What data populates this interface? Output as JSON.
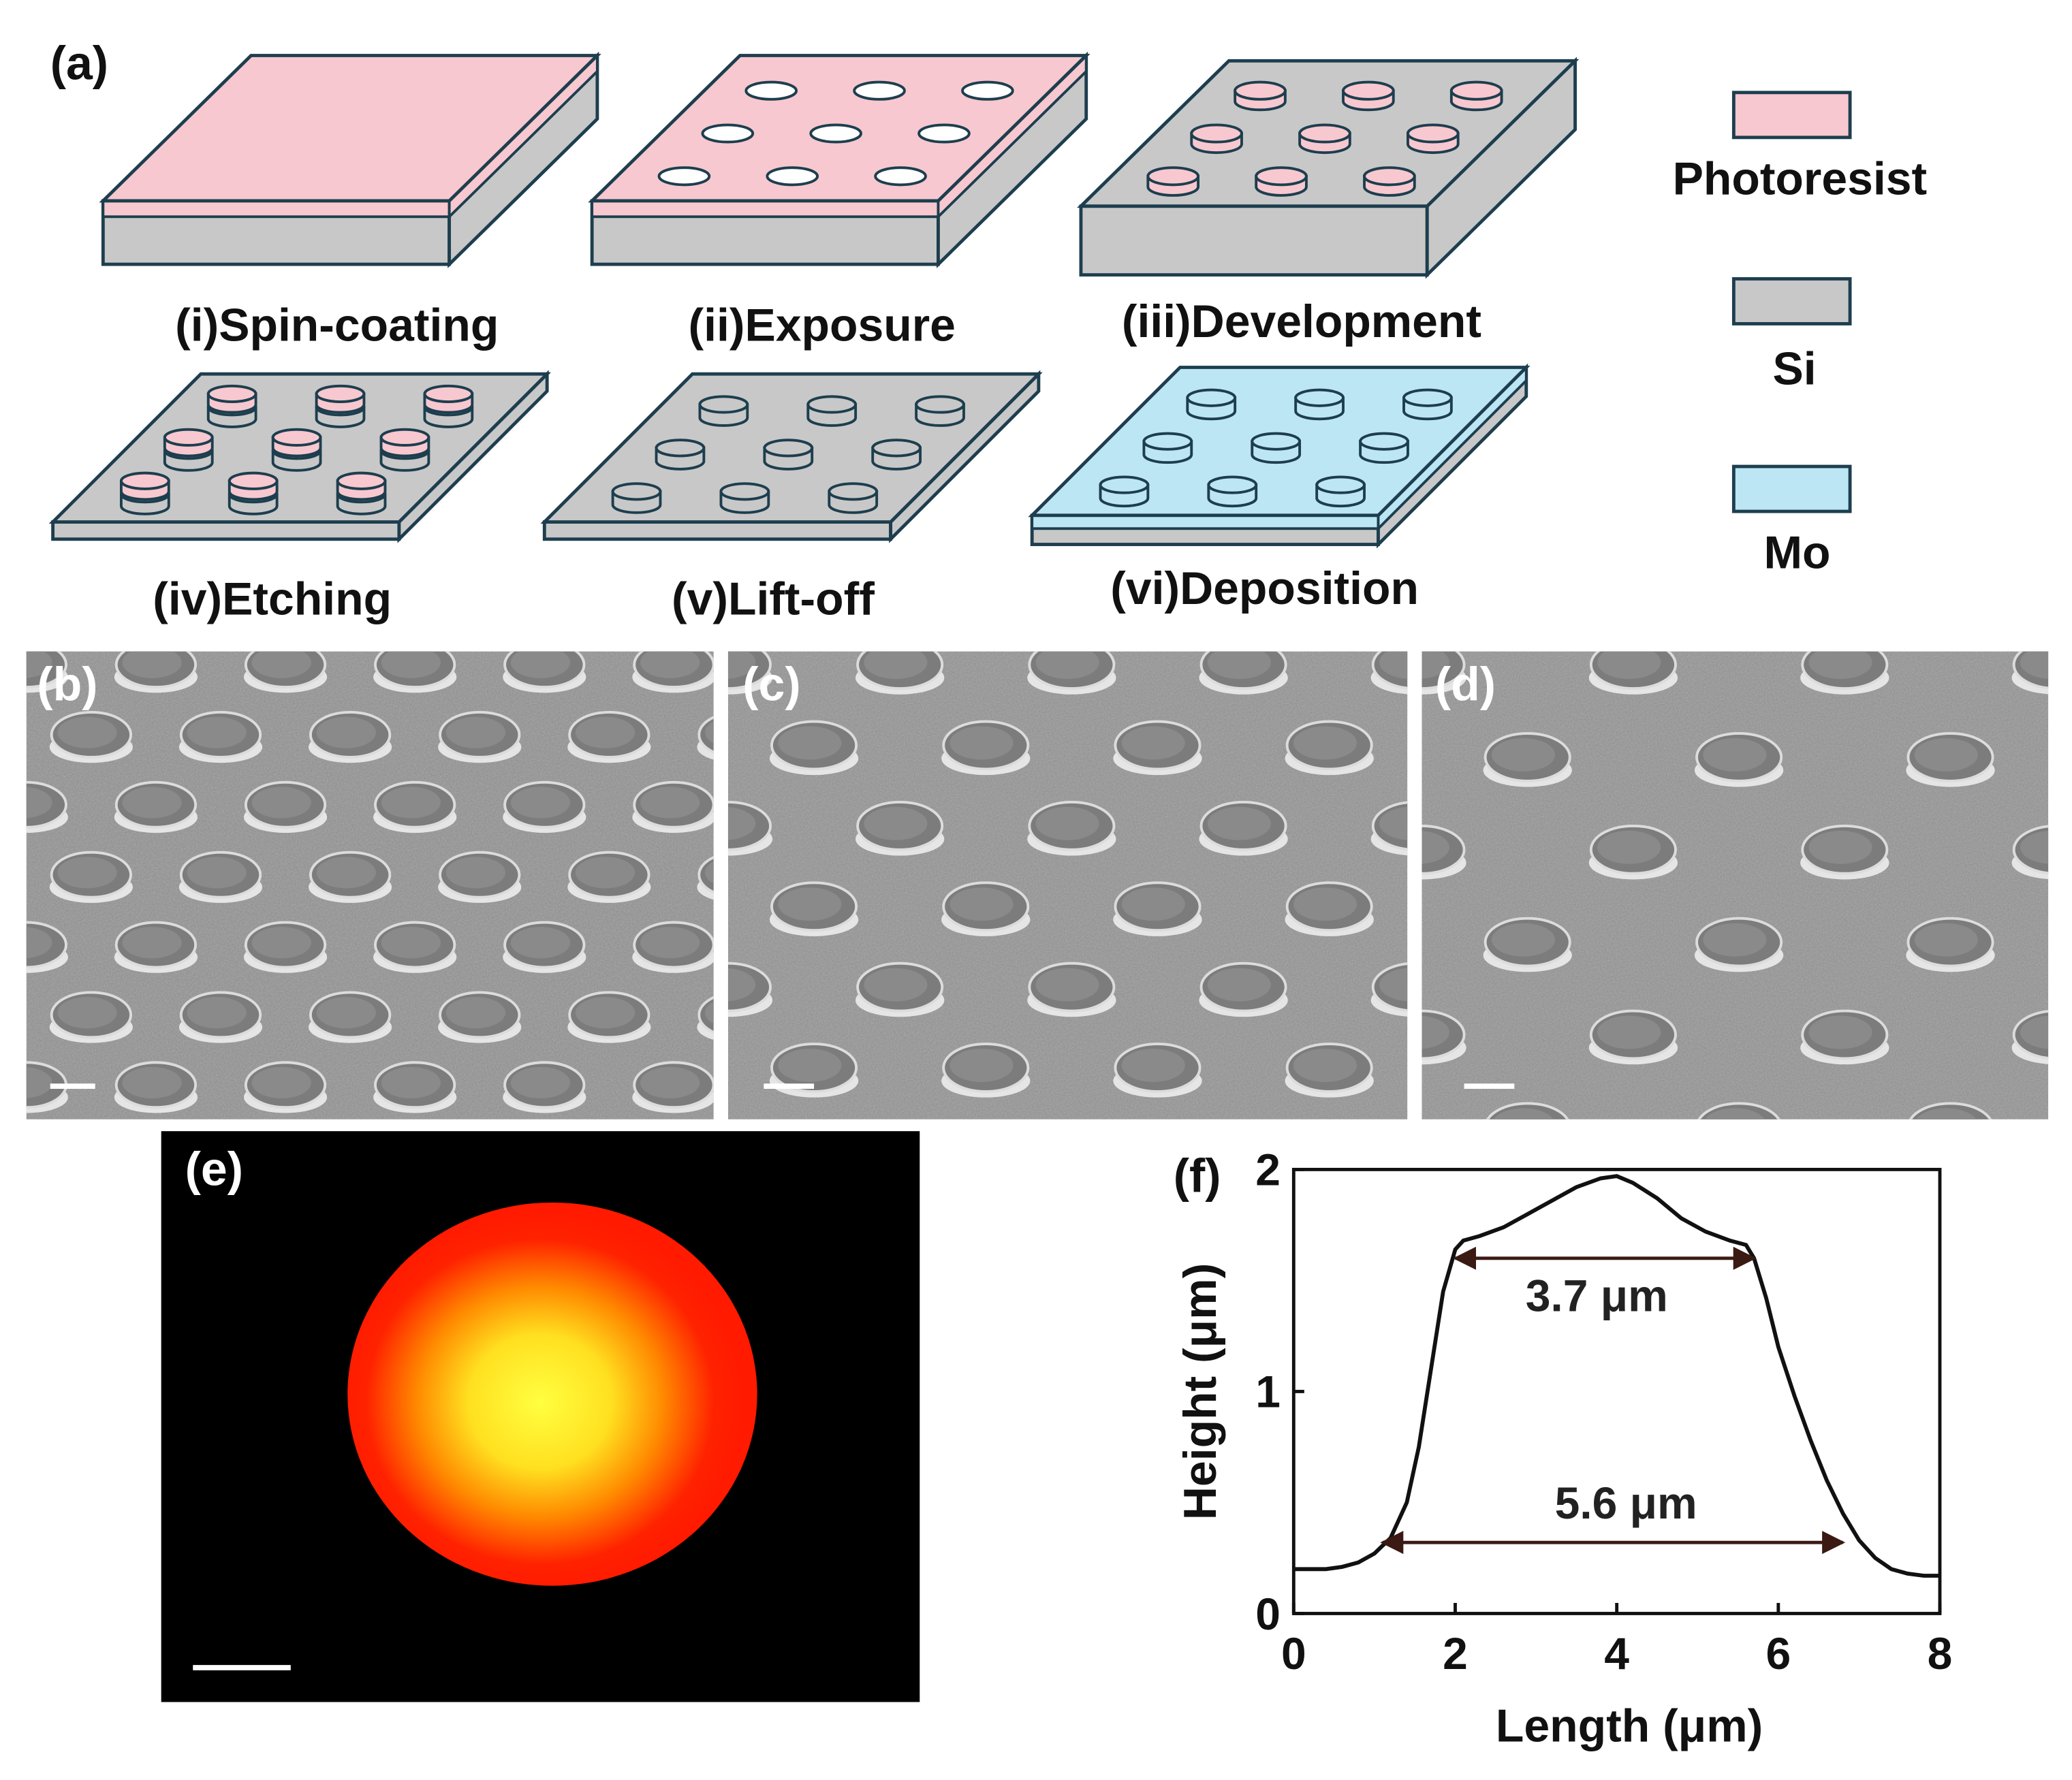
{
  "colors": {
    "photoresist": "#F7C8CF",
    "si": "#C8C8C8",
    "mo": "#BDE6F5",
    "outline": "#1D3E4E",
    "sem_background": "#8C8C8C",
    "hot_core": "#FFFF40",
    "hot_edge": "#FF1A00",
    "arrow": "#3A1A12"
  },
  "panel_a": {
    "label": "(a)",
    "steps": [
      {
        "label": "(i)Spin-coating",
        "substrate": "Si",
        "top_layer": "Photoresist",
        "features": "none"
      },
      {
        "label": "(ii)Exposure",
        "substrate": "Si",
        "top_layer": "Photoresist",
        "features": "exposed holes"
      },
      {
        "label": "(iii)Development",
        "substrate": "Si",
        "top_layer": "none",
        "features": "photoresist pillars"
      },
      {
        "label": "(iv)Etching",
        "substrate": "Si",
        "top_layer": "none",
        "features": "etched pillars with photoresist caps"
      },
      {
        "label": "(v)Lift-off",
        "substrate": "Si",
        "top_layer": "none",
        "features": "Si pillars"
      },
      {
        "label": "(vi)Deposition",
        "substrate": "Si",
        "top_layer": "Mo",
        "features": "Mo-coated pillars"
      }
    ],
    "legend": [
      {
        "name": "Photoresist",
        "color": "#F7C8CF"
      },
      {
        "name": "Si",
        "color": "#C8C8C8"
      },
      {
        "name": "Mo",
        "color": "#BDE6F5"
      }
    ]
  },
  "panel_b": {
    "label": "(b)"
  },
  "panel_c": {
    "label": "(c)"
  },
  "panel_d": {
    "label": "(d)"
  },
  "panel_e": {
    "label": "(e)"
  },
  "panel_f": {
    "label": "(f)"
  },
  "chart_data": {
    "type": "line",
    "xlabel": "Length (μm)",
    "ylabel": "Height (μm)",
    "xlim": [
      0,
      8
    ],
    "ylim": [
      0,
      2
    ],
    "xticks": [
      0,
      2,
      4,
      6,
      8
    ],
    "yticks": [
      0,
      1,
      2
    ],
    "series": [
      {
        "x": [
          0,
          0.2,
          0.4,
          0.6,
          0.8,
          1.0,
          1.2,
          1.4,
          1.55,
          1.7,
          1.85,
          2.0,
          2.1,
          2.3,
          2.6,
          2.9,
          3.2,
          3.5,
          3.8,
          4.0,
          4.2,
          4.5,
          4.8,
          5.1,
          5.4,
          5.6,
          5.7,
          5.85,
          6.0,
          6.2,
          6.4,
          6.6,
          6.8,
          7.0,
          7.2,
          7.4,
          7.6,
          7.8,
          8.0
        ],
        "y": [
          0.2,
          0.2,
          0.2,
          0.21,
          0.23,
          0.27,
          0.34,
          0.5,
          0.75,
          1.1,
          1.45,
          1.64,
          1.68,
          1.7,
          1.74,
          1.8,
          1.86,
          1.92,
          1.96,
          1.97,
          1.94,
          1.87,
          1.78,
          1.72,
          1.68,
          1.66,
          1.6,
          1.42,
          1.2,
          0.98,
          0.78,
          0.6,
          0.45,
          0.33,
          0.25,
          0.2,
          0.18,
          0.17,
          0.17
        ]
      }
    ],
    "annotations": [
      {
        "text": "3.7 μm",
        "x_start": 2.0,
        "x_end": 5.7,
        "y": 1.6
      },
      {
        "text": "5.6 μm",
        "x_start": 1.1,
        "x_end": 6.8,
        "y": 0.32
      }
    ]
  }
}
